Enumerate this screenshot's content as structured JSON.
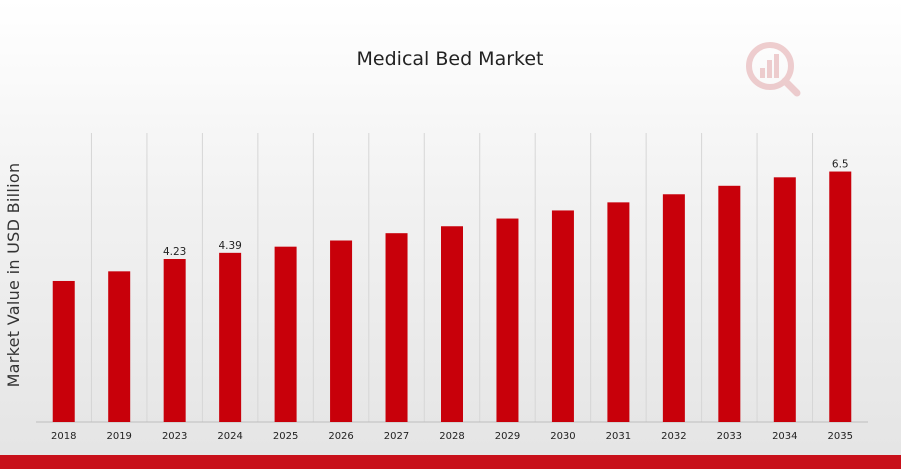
{
  "chart_data": {
    "type": "bar",
    "title": "Medical Bed Market",
    "ylabel": "Market Value in USD Billion",
    "xlabel": "",
    "categories": [
      "2018",
      "2019",
      "2023",
      "2024",
      "2025",
      "2026",
      "2027",
      "2028",
      "2029",
      "2030",
      "2031",
      "2032",
      "2033",
      "2034",
      "2035"
    ],
    "values": [
      3.66,
      3.91,
      4.23,
      4.39,
      4.55,
      4.71,
      4.9,
      5.08,
      5.28,
      5.49,
      5.7,
      5.91,
      6.13,
      6.35,
      6.5
    ],
    "data_labels": [
      {
        "index": 2,
        "text": "4.23"
      },
      {
        "index": 3,
        "text": "4.39"
      },
      {
        "index": 14,
        "text": "6.5"
      }
    ],
    "ylim": [
      0,
      7.5
    ],
    "grid": "vertical",
    "colors": {
      "bar": "#c8000a",
      "grid": "#d6d6d6",
      "band": "#c8101a"
    }
  },
  "logo": {
    "icon": "analytics-magnifier-logo-icon",
    "color": "#e0a0a4"
  }
}
